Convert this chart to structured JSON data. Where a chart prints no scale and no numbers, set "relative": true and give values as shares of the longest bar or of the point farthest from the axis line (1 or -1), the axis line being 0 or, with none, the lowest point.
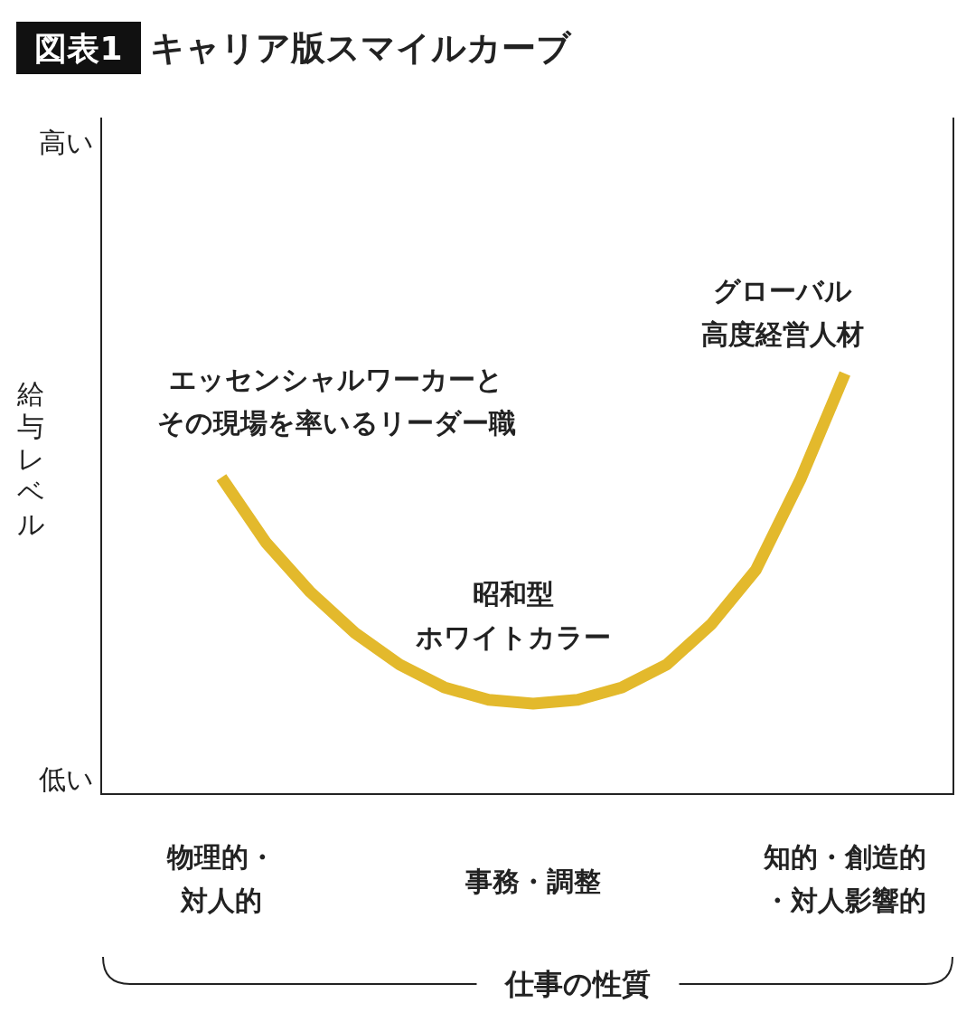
{
  "chart_data": {
    "type": "line",
    "title": "キャリア版スマイルカーブ",
    "ylabel": "給与レベル",
    "xlabel": "仕事の性質",
    "relative": true,
    "categories": [
      "物理的・対人的",
      null,
      null,
      null,
      null,
      null,
      null,
      "事務・調整",
      null,
      null,
      null,
      null,
      null,
      null,
      "知的・創造的・対人影響的"
    ],
    "series": [
      {
        "color": "#e3b92c",
        "values": [
          0.753,
          0.598,
          0.48,
          0.383,
          0.308,
          0.254,
          0.224,
          0.215,
          0.224,
          0.254,
          0.308,
          0.404,
          0.533,
          0.748,
          1.0
        ]
      }
    ],
    "annotations": [
      "図表1",
      "高い",
      "低い",
      "エッセンシャルワーカーとその現場を率いるリーダー職",
      "昭和型ホワイトカラー",
      "グローバル高度経営人材"
    ],
    "grid": false
  }
}
